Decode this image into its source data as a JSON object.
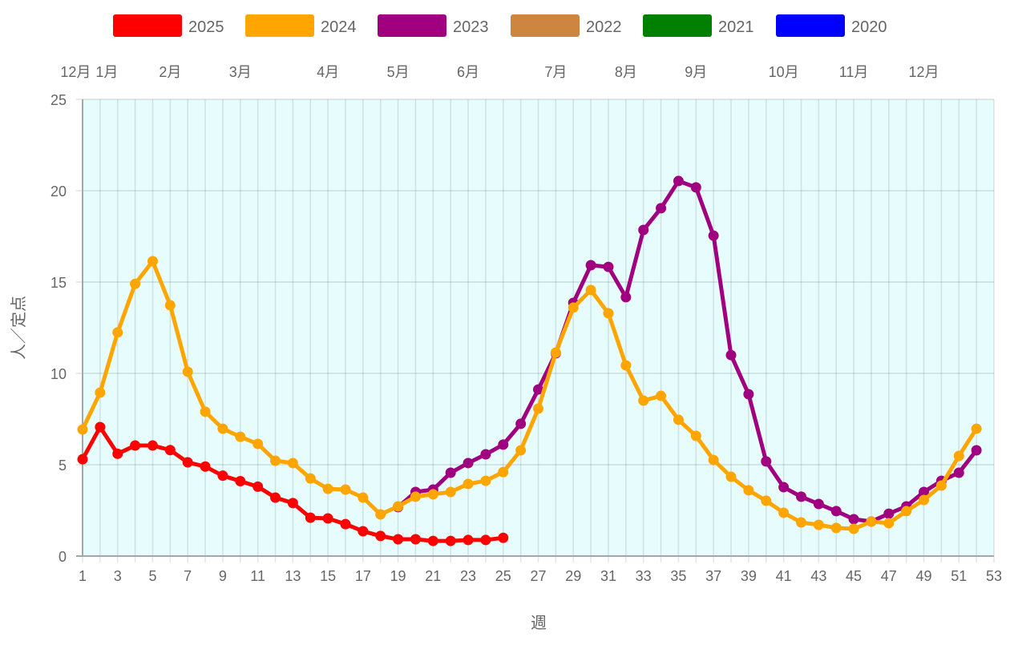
{
  "chart_data": {
    "type": "line",
    "xlabel": "週",
    "ylabel": "人／定点",
    "xlim": [
      1,
      53
    ],
    "ylim": [
      0,
      25
    ],
    "x_ticks": [
      1,
      3,
      5,
      7,
      9,
      11,
      13,
      15,
      17,
      19,
      21,
      23,
      25,
      27,
      29,
      31,
      33,
      35,
      37,
      39,
      41,
      43,
      45,
      47,
      49,
      51,
      53
    ],
    "y_ticks": [
      0,
      5,
      10,
      15,
      20,
      25
    ],
    "grid": true,
    "background": "#e6fcfd",
    "legend_position": "top",
    "month_labels": [
      {
        "label": "12月",
        "week": 1
      },
      {
        "label": "1月",
        "week": 2
      },
      {
        "label": "2月",
        "week": 6
      },
      {
        "label": "3月",
        "week": 10
      },
      {
        "label": "4月",
        "week": 15
      },
      {
        "label": "5月",
        "week": 19
      },
      {
        "label": "6月",
        "week": 23
      },
      {
        "label": "7月",
        "week": 28
      },
      {
        "label": "8月",
        "week": 32
      },
      {
        "label": "9月",
        "week": 36
      },
      {
        "label": "10月",
        "week": 41
      },
      {
        "label": "11月",
        "week": 45
      },
      {
        "label": "12月",
        "week": 49
      }
    ],
    "series": [
      {
        "name": "2025",
        "color": "#ff0000",
        "start_week": 1,
        "values": [
          5.3,
          7.06,
          5.6,
          6.05,
          6.05,
          5.8,
          5.13,
          4.9,
          4.4,
          4.1,
          3.8,
          3.2,
          2.9,
          2.1,
          2.06,
          1.75,
          1.36,
          1.1,
          0.92,
          0.92,
          0.83,
          0.83,
          0.88,
          0.88,
          1.0
        ]
      },
      {
        "name": "2024",
        "color": "#ffa500",
        "start_week": 1,
        "values": [
          6.93,
          8.95,
          12.24,
          14.9,
          16.14,
          13.73,
          10.09,
          7.9,
          6.97,
          6.53,
          6.14,
          5.22,
          5.09,
          4.25,
          3.68,
          3.64,
          3.2,
          2.28,
          2.72,
          3.25,
          3.38,
          3.51,
          3.95,
          4.12,
          4.6,
          5.79,
          8.07,
          11.14,
          13.6,
          14.56,
          13.29,
          10.44,
          8.51,
          8.77,
          7.46,
          6.58,
          5.26,
          4.34,
          3.6,
          3.03,
          2.37,
          1.84,
          1.71,
          1.54,
          1.49,
          1.89,
          1.8,
          2.46,
          3.07,
          3.86,
          5.48,
          6.97
        ]
      },
      {
        "name": "2023",
        "color": "#a0007f",
        "start_week": 19,
        "values": [
          2.68,
          3.51,
          3.64,
          4.56,
          5.09,
          5.57,
          6.1,
          7.24,
          9.12,
          11.1,
          13.86,
          15.92,
          15.83,
          14.17,
          17.85,
          19.04,
          20.53,
          20.18,
          17.54,
          11.0,
          8.86,
          5.18,
          3.77,
          3.25,
          2.85,
          2.46,
          2.02,
          1.89,
          2.32,
          2.72,
          3.51,
          4.12,
          4.56,
          5.79
        ]
      },
      {
        "name": "2022",
        "color": "#cd853f",
        "start_week": 1,
        "values": []
      },
      {
        "name": "2021",
        "color": "#008000",
        "start_week": 1,
        "values": []
      },
      {
        "name": "2020",
        "color": "#0000ff",
        "start_week": 1,
        "values": []
      }
    ]
  }
}
